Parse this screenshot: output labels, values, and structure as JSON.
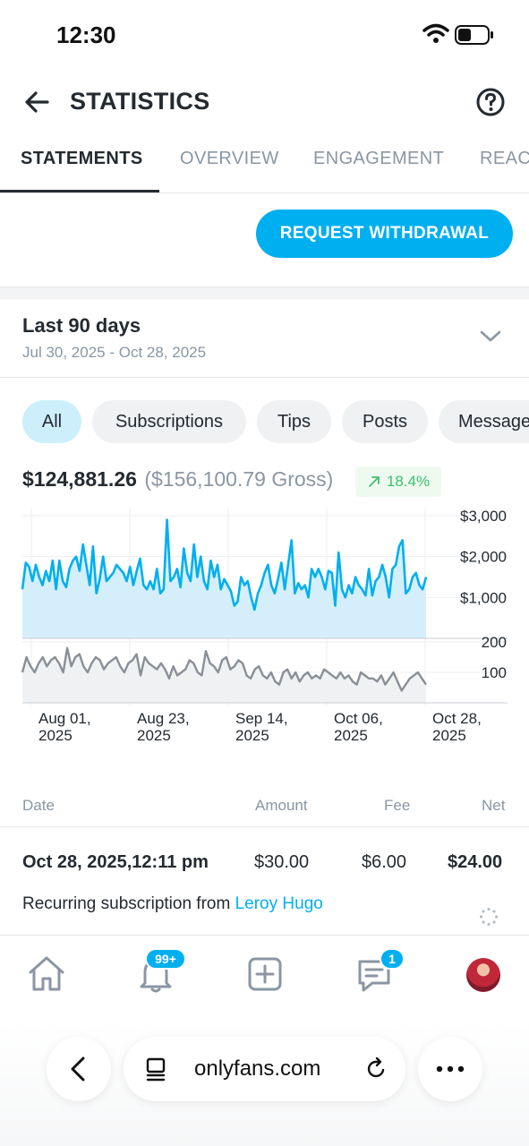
{
  "status_bar": {
    "time": "12:30"
  },
  "header": {
    "title": "STATISTICS"
  },
  "tabs": [
    {
      "label": "STATEMENTS",
      "active": true
    },
    {
      "label": "OVERVIEW",
      "active": false
    },
    {
      "label": "ENGAGEMENT",
      "active": false
    },
    {
      "label": "REACH",
      "active": false
    }
  ],
  "withdraw_button": "REQUEST WITHDRAWAL",
  "range": {
    "title": "Last 90 days",
    "dates": "Jul 30, 2025 - Oct 28, 2025"
  },
  "filters": [
    {
      "label": "All",
      "active": true
    },
    {
      "label": "Subscriptions",
      "active": false
    },
    {
      "label": "Tips",
      "active": false
    },
    {
      "label": "Posts",
      "active": false
    },
    {
      "label": "Messages",
      "active": false
    }
  ],
  "totals": {
    "net": "$124,881.26",
    "gross": "($156,100.79 Gross)",
    "growth": "18.4%"
  },
  "colors": {
    "accent": "#00aff0",
    "earnings_fill": "#d4effb",
    "count_line": "#8a8f96",
    "growth": "#3cc16a"
  },
  "chart_data": {
    "type": "line",
    "x_tick_labels": [
      [
        "Aug 01,",
        "2025"
      ],
      [
        "Aug 23,",
        "2025"
      ],
      [
        "Sep 14,",
        "2025"
      ],
      [
        "Oct 06,",
        "2025"
      ],
      [
        "Oct 28,",
        "2025"
      ]
    ],
    "x_range": [
      "Jul 30, 2025",
      "Oct 28, 2025"
    ],
    "panels": [
      {
        "unit": "USD",
        "y_tick_labels": [
          "$3,000",
          "$2,000",
          "$1,000"
        ],
        "y_ticks": [
          3000,
          2000,
          1000
        ],
        "ylim": [
          0,
          3000
        ],
        "series": [
          {
            "type": "area",
            "values": [
              1200,
              1850,
              1750,
              1400,
              1800,
              1500,
              1300,
              1650,
              1400,
              1900,
              1200,
              1900,
              1400,
              1250,
              1700,
              1900,
              2000,
              1650,
              2300,
              1800,
              1300,
              2250,
              1100,
              1450,
              2000,
              1400,
              1500,
              1600,
              1800,
              1700,
              1600,
              1400,
              1750,
              1300,
              1650,
              1950,
              1300,
              1200,
              1400,
              1200,
              1700,
              1100,
              1200,
              2900,
              1400,
              1500,
              1700,
              1250,
              2200,
              1600,
              1400,
              2300,
              1500,
              2000,
              1400,
              1200,
              1900,
              1500,
              1800,
              1200,
              1450,
              1300,
              1150,
              800,
              900,
              1500,
              1300,
              1400,
              1000,
              700,
              1100,
              1300,
              1600,
              1800,
              1300,
              1100,
              1450,
              1850,
              1200,
              1800,
              2400,
              1100,
              1350,
              1200,
              1300,
              1000,
              1700,
              1500,
              1700,
              1500,
              1200,
              1650,
              1600,
              800,
              2100,
              1200,
              1000,
              1300,
              1100,
              1500,
              1300,
              1200,
              1050,
              1700,
              1050,
              1400,
              1500,
              1800,
              1500,
              1000,
              1700,
              1800,
              2250,
              2400,
              1100,
              1200,
              1500,
              1600,
              1300,
              1200,
              1500
            ]
          }
        ]
      },
      {
        "unit": "count",
        "y_tick_labels": [
          "200",
          "100"
        ],
        "y_ticks": [
          200,
          100
        ],
        "ylim": [
          0,
          200
        ],
        "series": [
          {
            "type": "line",
            "values": [
              100,
              150,
              120,
              100,
              130,
              150,
              120,
              140,
              150,
              130,
              100,
              180,
              120,
              150,
              160,
              120,
              100,
              130,
              150,
              140,
              110,
              130,
              140,
              150,
              120,
              100,
              130,
              140,
              160,
              90,
              150,
              130,
              120,
              110,
              130,
              110,
              80,
              120,
              90,
              100,
              110,
              140,
              130,
              100,
              90,
              170,
              130,
              120,
              100,
              140,
              150,
              110,
              120,
              140,
              130,
              90,
              80,
              110,
              120,
              90,
              80,
              100,
              70,
              60,
              100,
              110,
              80,
              100,
              70,
              90,
              100,
              80,
              90,
              80,
              110,
              100,
              90,
              80,
              100,
              80,
              90,
              70,
              60,
              100,
              90,
              80,
              80,
              70,
              90,
              60,
              80,
              100,
              70,
              40,
              60,
              80,
              90,
              100,
              80,
              60
            ]
          }
        ]
      }
    ]
  },
  "table": {
    "headers": {
      "date": "Date",
      "amount": "Amount",
      "fee": "Fee",
      "net": "Net"
    },
    "rows": [
      {
        "date": "Oct 28, 2025,12:11 pm",
        "amount": "$30.00",
        "fee": "$6.00",
        "net": "$24.00",
        "description": "Recurring subscription from ",
        "from": "Leroy Hugo"
      }
    ]
  },
  "bottom_nav": {
    "notifications_badge": "99+",
    "messages_badge": "1"
  },
  "browser": {
    "url": "onlyfans.com"
  },
  "icons": [
    "back-arrow-icon",
    "help-icon",
    "chevron-down-icon",
    "trend-up-icon",
    "home-icon",
    "bell-icon",
    "add-post-icon",
    "chat-icon",
    "wifi-icon",
    "battery-icon",
    "reader-icon",
    "reload-icon",
    "more-icon",
    "loading-spinner-icon"
  ]
}
